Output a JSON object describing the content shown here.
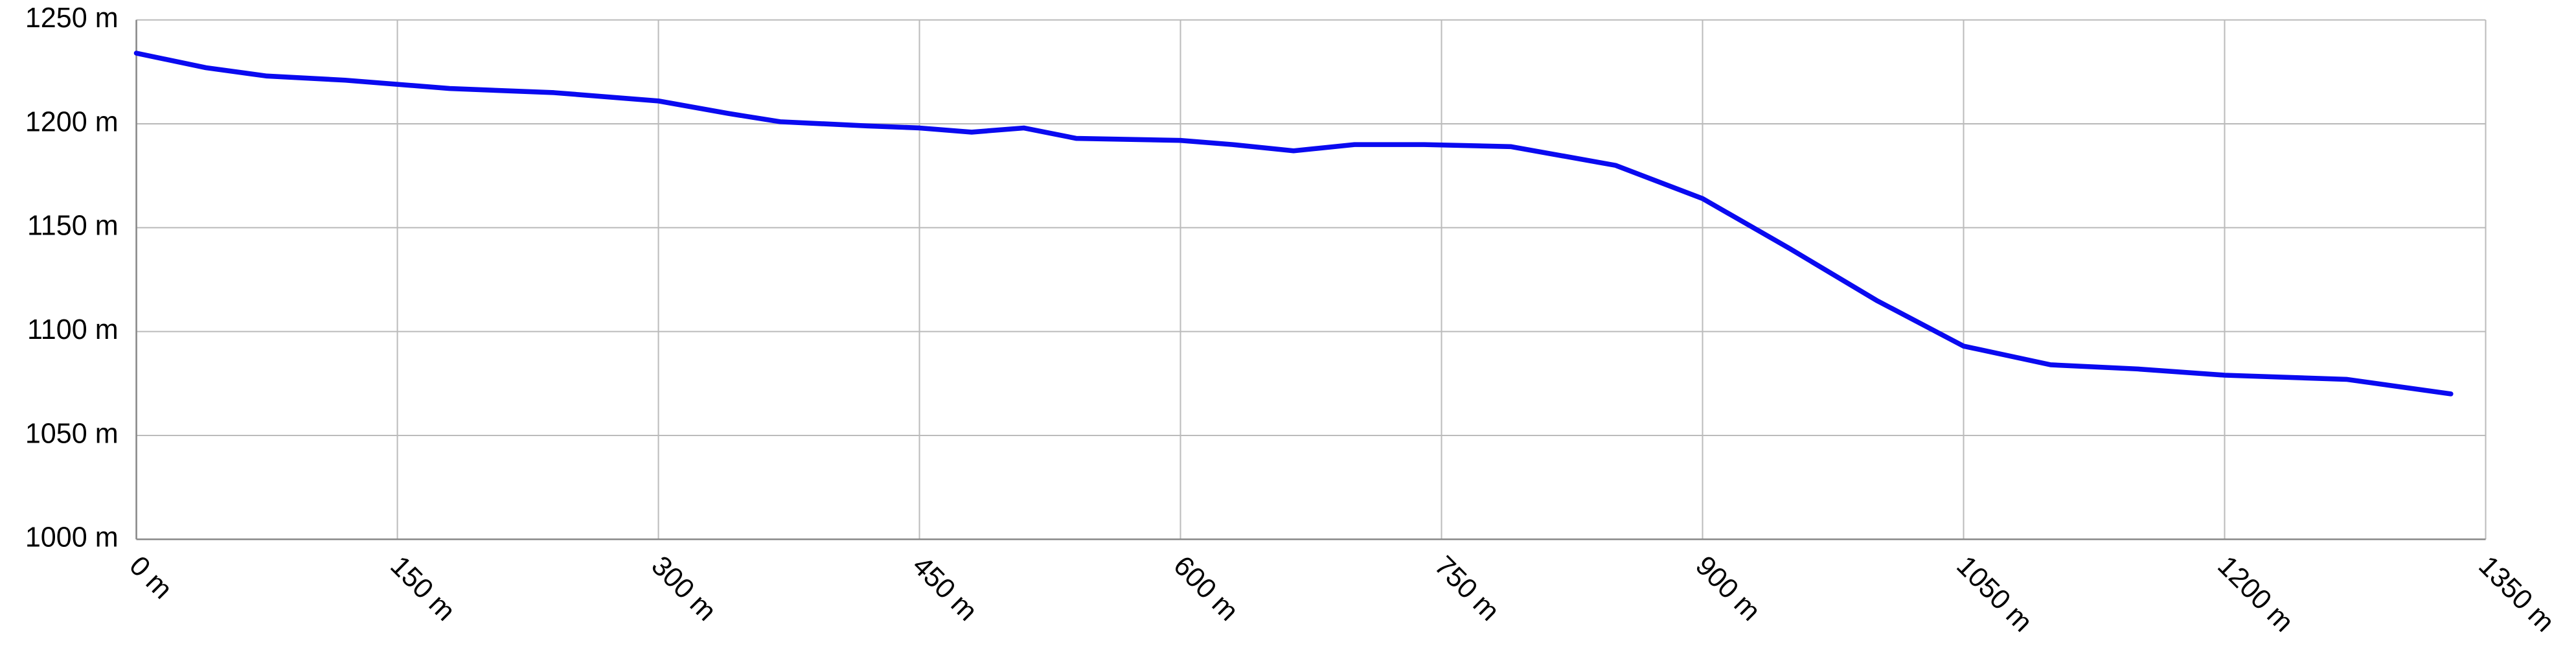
{
  "chart_data": {
    "type": "line",
    "x": [
      0,
      40,
      75,
      120,
      180,
      240,
      300,
      340,
      370,
      420,
      450,
      480,
      510,
      540,
      600,
      630,
      665,
      700,
      740,
      790,
      850,
      900,
      950,
      1000,
      1050,
      1100,
      1150,
      1200,
      1270,
      1330
    ],
    "series": [
      {
        "color": "#0a0af0",
        "values": [
          1234,
          1227,
          1223,
          1221,
          1217,
          1215,
          1211,
          1205,
          1201,
          1199,
          1198,
          1196,
          1198,
          1193,
          1192,
          1190,
          1187,
          1190,
          1190,
          1189,
          1180,
          1164,
          1140,
          1115,
          1093,
          1084,
          1082,
          1079,
          1077,
          1070
        ]
      }
    ],
    "xlim": [
      0,
      1350
    ],
    "xticks": [
      {
        "value": 0,
        "label": "0 m"
      },
      {
        "value": 150,
        "label": "150 m"
      },
      {
        "value": 300,
        "label": "300 m"
      },
      {
        "value": 450,
        "label": "450 m"
      },
      {
        "value": 600,
        "label": "600 m"
      },
      {
        "value": 750,
        "label": "750 m"
      },
      {
        "value": 900,
        "label": "900 m"
      },
      {
        "value": 1050,
        "label": "1050 m"
      },
      {
        "value": 1200,
        "label": "1200 m"
      },
      {
        "value": 1350,
        "label": "1350 m"
      }
    ],
    "ylim": [
      1000,
      1250
    ],
    "yticks": [
      {
        "value": 1000,
        "label": "1000 m"
      },
      {
        "value": 1050,
        "label": "1050 m"
      },
      {
        "value": 1100,
        "label": "1100 m"
      },
      {
        "value": 1150,
        "label": "1150 m"
      },
      {
        "value": 1200,
        "label": "1200 m"
      },
      {
        "value": 1250,
        "label": "1250 m"
      }
    ],
    "grid": true
  }
}
